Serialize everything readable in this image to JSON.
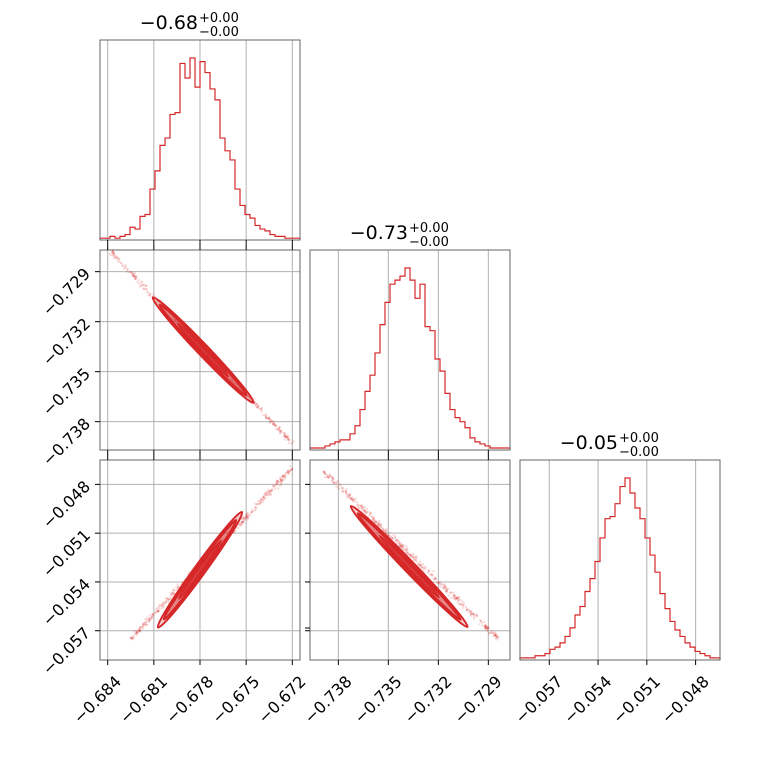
{
  "chart_data": {
    "type": "corner",
    "color": "#d62728",
    "grid": true,
    "titles": [
      {
        "main": "−0.68",
        "sup": "+0.00",
        "sub": "−0.00"
      },
      {
        "main": "−0.73",
        "sup": "+0.00",
        "sub": "−0.00"
      },
      {
        "main": "−0.05",
        "sup": "+0.00",
        "sub": "−0.00"
      }
    ],
    "params": [
      {
        "range": [
          -0.6845,
          -0.6715
        ],
        "ticks": [
          -0.684,
          -0.681,
          -0.678,
          -0.675,
          -0.672
        ],
        "tick_labels": [
          "−0.684",
          "−0.681",
          "−0.678",
          "−0.675",
          "−0.672"
        ]
      },
      {
        "range": [
          -0.7397,
          -0.7277
        ],
        "ticks": [
          -0.738,
          -0.735,
          -0.732,
          -0.729
        ],
        "tick_labels": [
          "−0.738",
          "−0.735",
          "−0.732",
          "−0.729"
        ]
      },
      {
        "range": [
          -0.0588,
          -0.0465
        ],
        "ticks": [
          -0.057,
          -0.054,
          -0.051,
          -0.048
        ],
        "tick_labels": [
          "−0.057",
          "−0.054",
          "−0.051",
          "−0.048"
        ]
      }
    ],
    "histograms": [
      {
        "counts": [
          1,
          1,
          2,
          1,
          2,
          3,
          7,
          6,
          13,
          14,
          28,
          38,
          52,
          56,
          69,
          70,
          97,
          89,
          100,
          84,
          98,
          92,
          83,
          77,
          56,
          49,
          44,
          28,
          19,
          14,
          12,
          8,
          6,
          5,
          3,
          2,
          2,
          1,
          1,
          1
        ]
      },
      {
        "counts": [
          1,
          1,
          1,
          2,
          3,
          4,
          5,
          5,
          8,
          12,
          20,
          29,
          37,
          48,
          62,
          73,
          82,
          84,
          86,
          90,
          84,
          75,
          82,
          61,
          59,
          45,
          39,
          28,
          20,
          16,
          14,
          11,
          6,
          4,
          3,
          2,
          1,
          1,
          1,
          1
        ]
      },
      {
        "counts": [
          1,
          1,
          1,
          2,
          2,
          3,
          5,
          6,
          8,
          11,
          15,
          21,
          25,
          32,
          38,
          46,
          57,
          66,
          67,
          73,
          81,
          85,
          78,
          71,
          66,
          57,
          49,
          41,
          31,
          24,
          18,
          14,
          11,
          8,
          6,
          4,
          3,
          2,
          1,
          1
        ]
      }
    ],
    "pairs": [
      {
        "x_param": 0,
        "y_param": 1,
        "line_start": [
          -0.6838,
          -0.7278
        ],
        "line_end": [
          -0.672,
          -0.7393
        ],
        "core": [
          -0.6808,
          -0.7308,
          -0.6748,
          -0.7366
        ]
      },
      {
        "x_param": 0,
        "y_param": 2,
        "line_start": [
          -0.6825,
          -0.0575
        ],
        "line_end": [
          -0.672,
          -0.047
        ],
        "core": [
          -0.6805,
          -0.0565,
          -0.6755,
          -0.05
        ]
      },
      {
        "x_param": 1,
        "y_param": 2,
        "line_start": [
          -0.7389,
          -0.0472
        ],
        "line_end": [
          -0.7284,
          -0.0575
        ],
        "core": [
          -0.737,
          -0.0496,
          -0.7305,
          -0.0565
        ]
      }
    ]
  }
}
